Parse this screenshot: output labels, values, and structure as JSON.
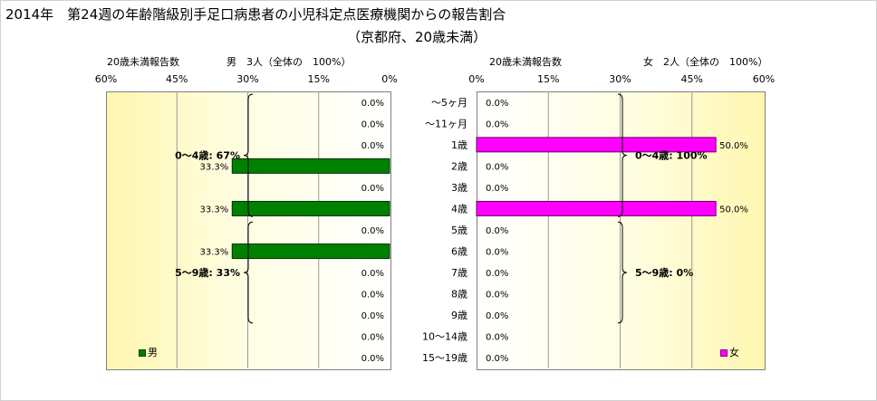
{
  "header": {
    "title": "2014年　第24週の年齢階級別手足口病患者の小児科定点医療機関からの報告割合",
    "subtitle": "（京都府、20歳未満）"
  },
  "colors": {
    "male": "#008000",
    "female": "#ff00ff"
  },
  "chart_data": [
    {
      "type": "bar",
      "orientation": "horizontal",
      "direction": "right-to-left",
      "header_left": "20歳未満報告数",
      "header_right": "男　3人（全体の　100%）",
      "legend": "男",
      "legend_position": "bottom-left",
      "categories": [
        "～5ヶ月",
        "～11ヶ月",
        "1歳",
        "2歳",
        "3歳",
        "4歳",
        "5歳",
        "6歳",
        "7歳",
        "8歳",
        "9歳",
        "10～14歳",
        "15～19歳"
      ],
      "values": [
        0.0,
        0.0,
        0.0,
        33.3,
        0.0,
        33.3,
        0.0,
        33.3,
        0.0,
        0.0,
        0.0,
        0.0,
        0.0
      ],
      "value_labels": [
        "0.0%",
        "0.0%",
        "0.0%",
        "33.3%",
        "0.0%",
        "33.3%",
        "0.0%",
        "33.3%",
        "0.0%",
        "0.0%",
        "0.0%",
        "0.0%",
        "0.0%"
      ],
      "xlim": [
        0,
        60
      ],
      "ticks": [
        "0%",
        "15%",
        "30%",
        "45%",
        "60%"
      ],
      "grid": true,
      "annotations": [
        {
          "text": "0～4歳: 67%",
          "rows": [
            0,
            5
          ]
        },
        {
          "text": "5～9歳: 33%",
          "rows": [
            6,
            10
          ]
        }
      ]
    },
    {
      "type": "bar",
      "orientation": "horizontal",
      "direction": "left-to-right",
      "header_left": "20歳未満報告数",
      "header_right": "女　2人（全体の　100%）",
      "legend": "女",
      "legend_position": "bottom-right",
      "categories": [
        "～5ヶ月",
        "～11ヶ月",
        "1歳",
        "2歳",
        "3歳",
        "4歳",
        "5歳",
        "6歳",
        "7歳",
        "8歳",
        "9歳",
        "10～14歳",
        "15～19歳"
      ],
      "values": [
        0.0,
        0.0,
        50.0,
        0.0,
        0.0,
        50.0,
        0.0,
        0.0,
        0.0,
        0.0,
        0.0,
        0.0,
        0.0
      ],
      "value_labels": [
        "0.0%",
        "0.0%",
        "50.0%",
        "0.0%",
        "0.0%",
        "50.0%",
        "0.0%",
        "0.0%",
        "0.0%",
        "0.0%",
        "0.0%",
        "0.0%",
        "0.0%"
      ],
      "xlim": [
        0,
        60
      ],
      "ticks": [
        "0%",
        "15%",
        "30%",
        "45%",
        "60%"
      ],
      "grid": true,
      "annotations": [
        {
          "text": "0～4歳: 100%",
          "rows": [
            0,
            5
          ]
        },
        {
          "text": "5～9歳: 0%",
          "rows": [
            6,
            10
          ]
        }
      ]
    }
  ]
}
